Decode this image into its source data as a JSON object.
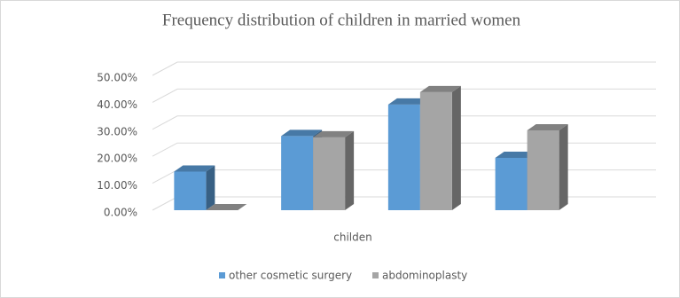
{
  "chart_data": {
    "type": "bar3d",
    "title": "Frequency distribution of children in married women",
    "x_label": "childen",
    "categories": [
      null,
      null,
      null,
      null
    ],
    "series": [
      {
        "name": "other cosmetic surgery",
        "color": "#5b9bd5",
        "values": [
          14.3,
          27.5,
          39.2,
          19.4
        ]
      },
      {
        "name": "abdominoplasty",
        "color": "#a5a5a5",
        "values": [
          0,
          27.0,
          43.8,
          29.6
        ]
      }
    ],
    "ylim": [
      0,
      50
    ],
    "yticks": [
      {
        "value": 0,
        "label": "0.00%"
      },
      {
        "value": 10,
        "label": "10.00%"
      },
      {
        "value": 20,
        "label": "20.00%"
      },
      {
        "value": 30,
        "label": "30.00%"
      },
      {
        "value": 40,
        "label": "40.00%"
      },
      {
        "value": 50,
        "label": "50.00%"
      }
    ],
    "grid": true,
    "legend": "bottom"
  }
}
